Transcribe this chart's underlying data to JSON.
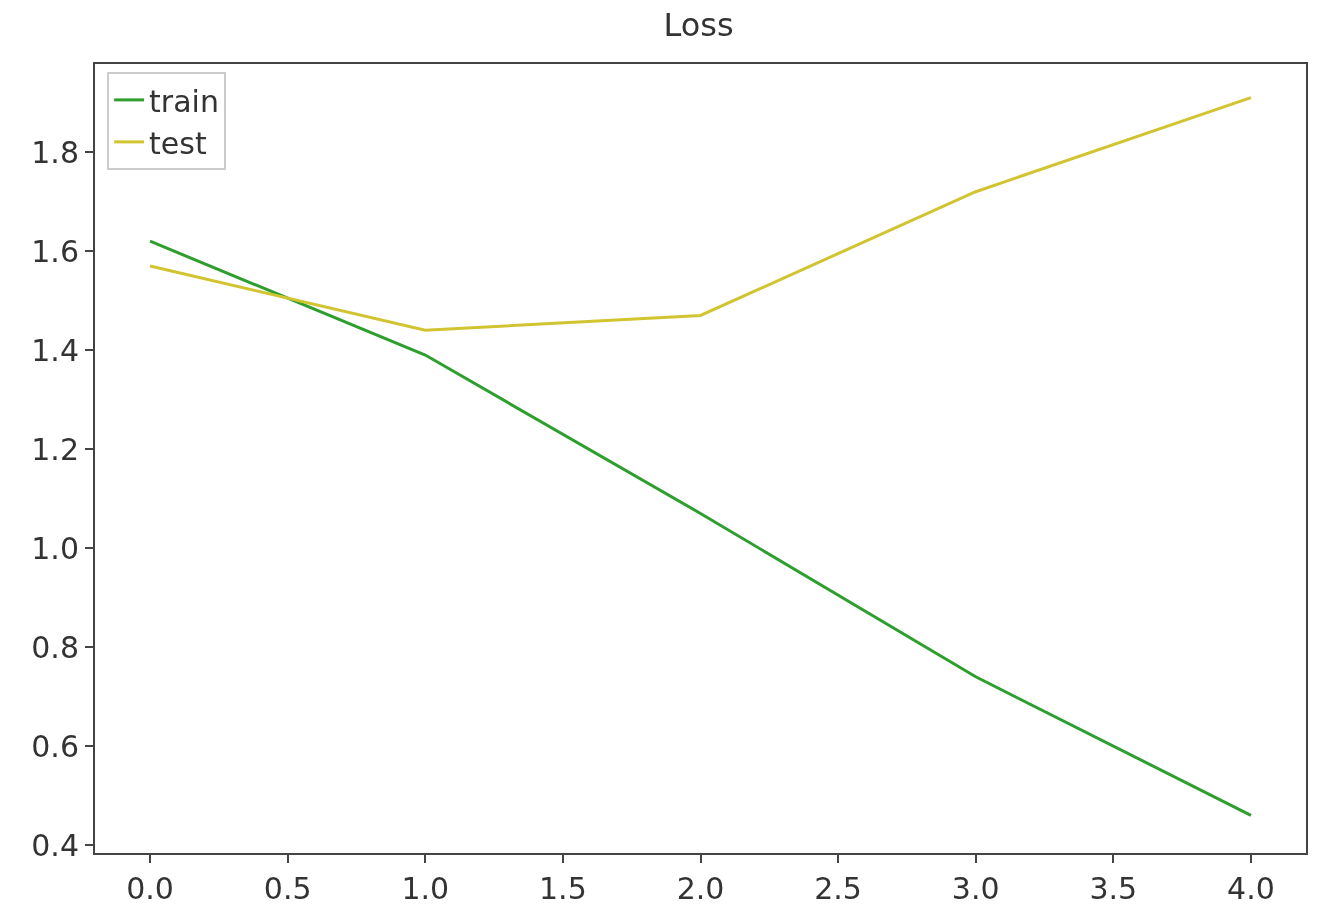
{
  "chart_data": {
    "type": "line",
    "title": "Loss",
    "x": [
      0,
      1,
      2,
      3,
      4
    ],
    "series": [
      {
        "name": "train",
        "color": "#2e9e2e",
        "values": [
          1.62,
          1.39,
          1.07,
          0.74,
          0.46
        ]
      },
      {
        "name": "test",
        "color": "#d2c430",
        "values": [
          1.57,
          1.44,
          1.47,
          1.72,
          1.91
        ]
      }
    ],
    "xlim": [
      -0.2,
      4.2
    ],
    "xticks": [
      {
        "value": 0,
        "label": "0.0"
      },
      {
        "value": 0.5,
        "label": "0.5"
      },
      {
        "value": 1,
        "label": "1.0"
      },
      {
        "value": 1.5,
        "label": "1.5"
      },
      {
        "value": 2,
        "label": "2.0"
      },
      {
        "value": 2.5,
        "label": "2.5"
      },
      {
        "value": 3,
        "label": "3.0"
      },
      {
        "value": 3.5,
        "label": "3.5"
      },
      {
        "value": 4,
        "label": "4.0"
      }
    ],
    "ylim": [
      0.384,
      1.978
    ],
    "yticks": [
      {
        "value": 0.4,
        "label": "0.4"
      },
      {
        "value": 0.6,
        "label": "0.6"
      },
      {
        "value": 0.8,
        "label": "0.8"
      },
      {
        "value": 1.0,
        "label": "1.0"
      },
      {
        "value": 1.2,
        "label": "1.2"
      },
      {
        "value": 1.4,
        "label": "1.4"
      },
      {
        "value": 1.6,
        "label": "1.6"
      },
      {
        "value": 1.8,
        "label": "1.8"
      }
    ],
    "legend": "top left",
    "line_style": "solid",
    "marker": "none"
  }
}
